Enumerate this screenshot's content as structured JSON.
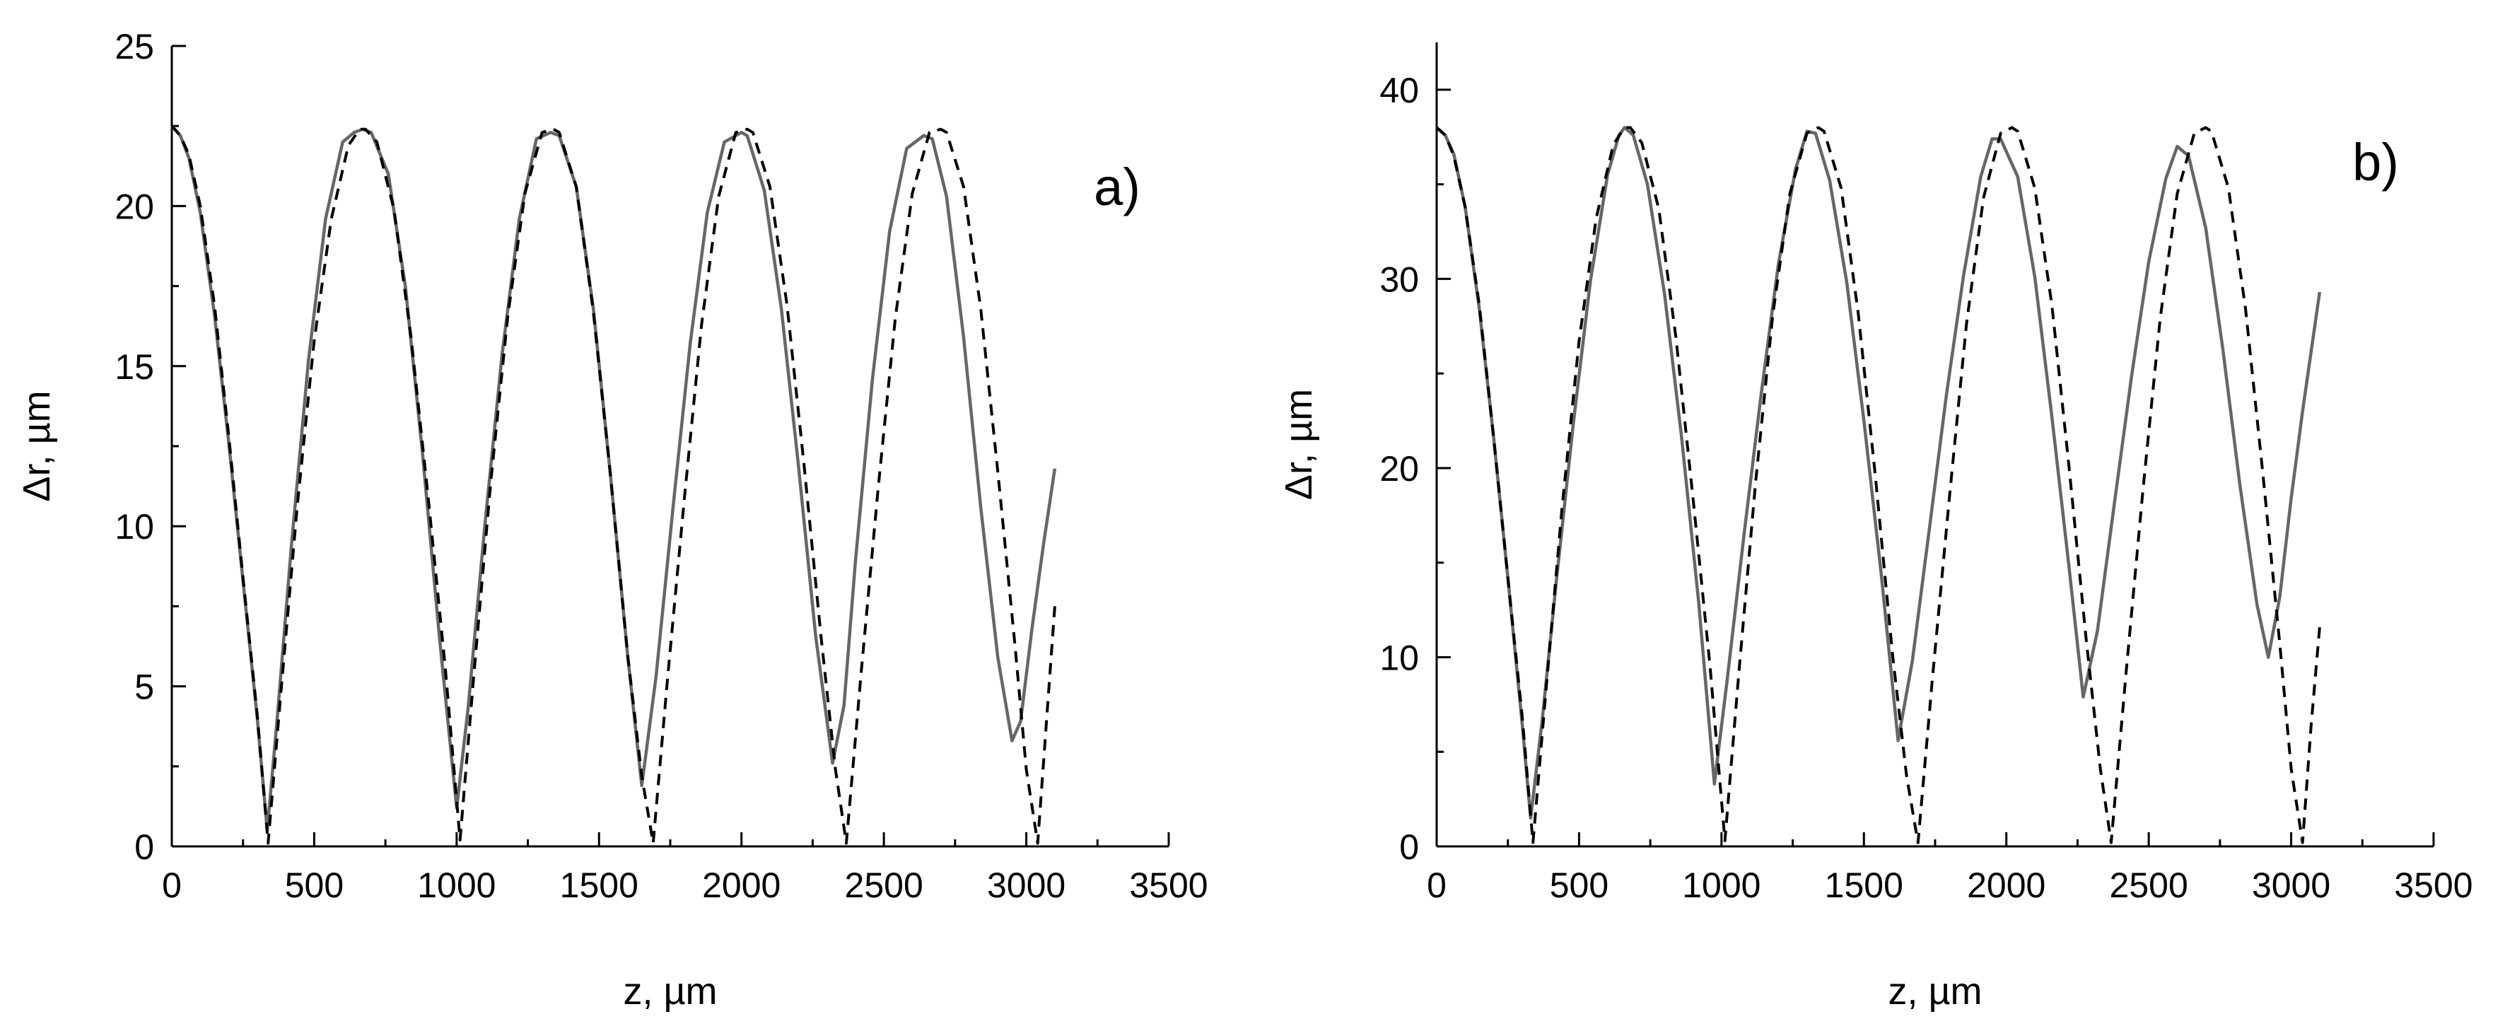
{
  "chart_data": [
    {
      "type": "line",
      "panel_label": "a)",
      "xlabel": "z, µm",
      "ylabel": "Δr, µm",
      "xlim": [
        0,
        3500
      ],
      "ylim": [
        0,
        25
      ],
      "xticks": [
        0,
        500,
        1000,
        1500,
        2000,
        2500,
        3000,
        3500
      ],
      "yticks": [
        0,
        5,
        10,
        15,
        20,
        25
      ],
      "grid": false,
      "legend": "none",
      "series": [
        {
          "style": "solid",
          "color": "#666666",
          "x": [
            0,
            30,
            60,
            100,
            150,
            200,
            250,
            300,
            335,
            370,
            420,
            480,
            540,
            600,
            640,
            670,
            700,
            760,
            820,
            880,
            940,
            1000,
            1040,
            1100,
            1160,
            1220,
            1280,
            1330,
            1360,
            1420,
            1480,
            1540,
            1600,
            1650,
            1700,
            1760,
            1820,
            1880,
            1940,
            2000,
            2020,
            2080,
            2140,
            2200,
            2260,
            2320,
            2360,
            2400,
            2460,
            2520,
            2580,
            2640,
            2670,
            2720,
            2780,
            2840,
            2900,
            2950,
            2980,
            3020,
            3060,
            3100
          ],
          "y": [
            22.5,
            22.2,
            21.5,
            19.8,
            16.6,
            12.6,
            8.3,
            4.0,
            0.5,
            4.0,
            9.4,
            15.2,
            19.6,
            22.0,
            22.3,
            22.4,
            22.3,
            21.0,
            17.5,
            12.3,
            6.5,
            1.2,
            4.3,
            10.1,
            15.4,
            19.6,
            22.1,
            22.3,
            22.2,
            20.6,
            16.8,
            11.6,
            6.0,
            1.9,
            5.3,
            10.6,
            15.7,
            19.8,
            22.0,
            22.3,
            22.2,
            20.5,
            16.8,
            11.9,
            6.6,
            2.6,
            4.4,
            8.9,
            14.6,
            19.2,
            21.8,
            22.2,
            22.1,
            20.3,
            15.9,
            10.6,
            5.9,
            3.3,
            3.9,
            6.8,
            9.4,
            11.8
          ]
        },
        {
          "style": "dashed",
          "color": "#000000",
          "x": [
            0,
            30,
            60,
            100,
            150,
            200,
            250,
            300,
            338,
            380,
            440,
            500,
            560,
            620,
            660,
            680,
            720,
            780,
            840,
            900,
            960,
            1012,
            1060,
            1120,
            1180,
            1240,
            1300,
            1340,
            1360,
            1420,
            1480,
            1540,
            1600,
            1650,
            1690,
            1740,
            1800,
            1860,
            1920,
            1980,
            2020,
            2040,
            2100,
            2160,
            2220,
            2280,
            2330,
            2368,
            2420,
            2480,
            2540,
            2600,
            2660,
            2700,
            2720,
            2780,
            2840,
            2900,
            2960,
            3000,
            3040,
            3070,
            3100
          ],
          "y": [
            22.5,
            22.2,
            21.6,
            20.0,
            16.9,
            12.8,
            8.4,
            4.1,
            0.1,
            4.5,
            10.6,
            15.8,
            19.6,
            21.9,
            22.4,
            22.4,
            22.0,
            19.9,
            15.9,
            10.9,
            5.6,
            0.2,
            5.3,
            11.4,
            16.6,
            20.4,
            22.3,
            22.4,
            22.3,
            20.6,
            16.7,
            11.6,
            6.0,
            2.2,
            0.1,
            5.2,
            10.9,
            16.3,
            20.3,
            22.3,
            22.4,
            22.3,
            20.6,
            16.9,
            11.9,
            6.5,
            2.4,
            0.1,
            5.4,
            11.2,
            16.5,
            20.4,
            22.3,
            22.4,
            22.3,
            20.6,
            16.8,
            11.7,
            6.3,
            2.4,
            0.1,
            3.8,
            7.5
          ]
        }
      ]
    },
    {
      "type": "line",
      "panel_label": "b)",
      "xlabel": "z, µm",
      "ylabel": "Δr, µm",
      "xlim": [
        0,
        3500
      ],
      "ylim": [
        0,
        42.5
      ],
      "xticks": [
        0,
        500,
        1000,
        1500,
        2000,
        2500,
        3000,
        3500
      ],
      "yticks": [
        0,
        10,
        20,
        30,
        40
      ],
      "grid": false,
      "legend": "none",
      "series": [
        {
          "style": "solid",
          "color": "#666666",
          "x": [
            0,
            30,
            60,
            100,
            150,
            200,
            250,
            300,
            330,
            370,
            420,
            480,
            540,
            600,
            640,
            660,
            690,
            740,
            800,
            860,
            920,
            975,
            1020,
            1080,
            1140,
            1200,
            1260,
            1300,
            1330,
            1380,
            1440,
            1500,
            1560,
            1620,
            1670,
            1730,
            1790,
            1850,
            1910,
            1950,
            1980,
            2040,
            2100,
            2160,
            2220,
            2270,
            2320,
            2380,
            2440,
            2500,
            2560,
            2600,
            2640,
            2700,
            2760,
            2820,
            2880,
            2920,
            2960,
            3000,
            3040,
            3100
          ],
          "y": [
            38.0,
            37.6,
            36.6,
            33.8,
            28.4,
            21.6,
            14.2,
            6.5,
            1.5,
            6.6,
            14.0,
            22.4,
            29.9,
            35.5,
            37.6,
            38.0,
            37.6,
            35.0,
            29.2,
            21.6,
            12.9,
            3.3,
            8.8,
            16.6,
            24.0,
            30.8,
            35.8,
            37.8,
            37.7,
            35.2,
            29.8,
            22.5,
            14.5,
            5.6,
            9.8,
            16.8,
            23.9,
            30.2,
            35.4,
            37.4,
            37.4,
            35.4,
            30.1,
            22.7,
            14.8,
            7.9,
            11.4,
            18.2,
            24.9,
            30.9,
            35.3,
            37.0,
            36.5,
            32.7,
            26.3,
            19.1,
            12.8,
            10.0,
            13.2,
            18.4,
            23.0,
            29.3
          ]
        },
        {
          "style": "dashed",
          "color": "#000000",
          "x": [
            0,
            30,
            60,
            100,
            150,
            200,
            250,
            300,
            338,
            380,
            440,
            500,
            560,
            620,
            660,
            680,
            720,
            780,
            840,
            900,
            960,
            1012,
            1060,
            1120,
            1180,
            1240,
            1300,
            1340,
            1360,
            1420,
            1480,
            1540,
            1600,
            1650,
            1690,
            1740,
            1800,
            1860,
            1920,
            1980,
            2020,
            2040,
            2100,
            2160,
            2220,
            2280,
            2330,
            2368,
            2420,
            2480,
            2540,
            2600,
            2660,
            2700,
            2720,
            2780,
            2840,
            2900,
            2960,
            3000,
            3040,
            3070,
            3100
          ],
          "y": [
            38.0,
            37.6,
            36.5,
            33.8,
            28.6,
            21.6,
            14.2,
            6.9,
            0.2,
            7.6,
            17.9,
            26.7,
            33.2,
            37.1,
            38.0,
            38.0,
            37.2,
            33.7,
            26.9,
            18.4,
            9.5,
            0.3,
            9.0,
            19.3,
            28.1,
            34.5,
            37.7,
            38.0,
            37.8,
            34.8,
            28.2,
            19.6,
            10.2,
            3.7,
            0.2,
            8.8,
            18.4,
            27.6,
            34.3,
            37.7,
            38.0,
            37.8,
            34.8,
            28.6,
            20.1,
            11.0,
            4.1,
            0.2,
            9.1,
            18.9,
            27.9,
            34.5,
            37.7,
            38.0,
            37.8,
            34.8,
            28.4,
            19.8,
            10.7,
            4.1,
            0.2,
            6.4,
            11.6
          ]
        }
      ]
    }
  ]
}
